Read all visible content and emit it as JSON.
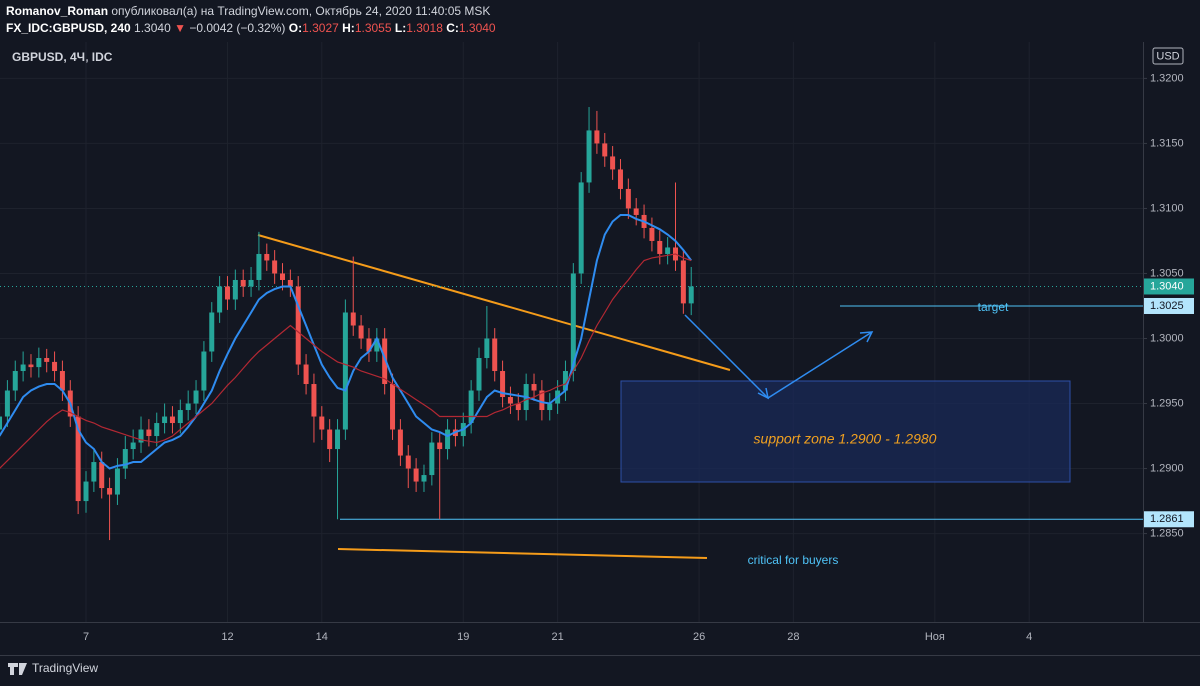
{
  "header": {
    "author": "Romanov_Roman",
    "published": "опубликовал(а) на TradingView.com, Октябрь 24, 2020 11:40:05 MSK",
    "symbol": "FX_IDC:GBPUSD, 240",
    "last": "1.3040",
    "change_arrow": "▼",
    "change": "−0.0042 (−0.32%)",
    "o_label": "O:",
    "o": "1.3027",
    "h_label": "H:",
    "h": "1.3055",
    "l_label": "L:",
    "l": "1.3018",
    "c_label": "C:",
    "c": "1.3040"
  },
  "chart_data": {
    "type": "candlestick",
    "title": "GBPUSD, 4Ч, IDC",
    "currency": "USD",
    "up_color": "#26a69a",
    "down_color": "#ef5350",
    "open": [
      1.293,
      1.294,
      1.296,
      1.2975,
      1.298,
      1.2978,
      1.2985,
      1.2982,
      1.2975,
      1.296,
      1.294,
      1.2875,
      1.289,
      1.2905,
      1.2885,
      1.288,
      1.29,
      1.2915,
      1.292,
      1.293,
      1.2925,
      1.2935,
      1.294,
      1.2935,
      1.2945,
      1.295,
      1.296,
      1.299,
      1.302,
      1.304,
      1.303,
      1.3045,
      1.304,
      1.3045,
      1.3065,
      1.306,
      1.305,
      1.3045,
      1.304,
      1.298,
      1.2965,
      1.294,
      1.293,
      1.2915,
      1.293,
      1.302,
      1.301,
      1.3,
      1.299,
      1.3,
      1.2965,
      1.293,
      1.291,
      1.29,
      1.289,
      1.2895,
      1.292,
      1.2915,
      1.293,
      1.2925,
      1.2935,
      1.296,
      1.2985,
      1.3,
      1.2975,
      1.2955,
      1.295,
      1.2945,
      1.2965,
      1.296,
      1.2945,
      1.295,
      1.296,
      1.2975,
      1.305,
      1.312,
      1.316,
      1.315,
      1.314,
      1.313,
      1.3115,
      1.31,
      1.3095,
      1.3085,
      1.3075,
      1.3065,
      1.307,
      1.306,
      1.3027
    ],
    "high": [
      1.295,
      1.2968,
      1.2983,
      1.299,
      1.2988,
      1.2993,
      1.2992,
      1.299,
      1.2983,
      1.2968,
      1.2948,
      1.2898,
      1.2915,
      1.2913,
      1.2893,
      1.2908,
      1.2925,
      1.293,
      1.294,
      1.2938,
      1.2943,
      1.295,
      1.2948,
      1.2953,
      1.296,
      1.2968,
      1.2998,
      1.3028,
      1.3048,
      1.3048,
      1.3053,
      1.3053,
      1.3055,
      1.3082,
      1.3073,
      1.3068,
      1.3058,
      1.3053,
      1.3048,
      1.2988,
      1.2973,
      1.2948,
      1.2938,
      1.2938,
      1.303,
      1.3063,
      1.3018,
      1.3008,
      1.3008,
      1.3008,
      1.2973,
      1.2938,
      1.2918,
      1.2908,
      1.2903,
      1.2928,
      1.2928,
      1.2938,
      1.2938,
      1.2943,
      1.2968,
      1.2993,
      1.3025,
      1.3008,
      1.2983,
      1.2963,
      1.2958,
      1.2973,
      1.2973,
      1.2968,
      1.2958,
      1.2968,
      1.2983,
      1.3058,
      1.3128,
      1.3178,
      1.3175,
      1.3158,
      1.3148,
      1.3138,
      1.3123,
      1.3108,
      1.3103,
      1.3093,
      1.3083,
      1.3078,
      1.312,
      1.3068,
      1.3055
    ],
    "low": [
      1.2922,
      1.2932,
      1.2952,
      1.2967,
      1.297,
      1.297,
      1.2974,
      1.2967,
      1.2952,
      1.2932,
      1.2865,
      1.2866,
      1.2882,
      1.2877,
      1.2845,
      1.2872,
      1.2892,
      1.2907,
      1.2912,
      1.2917,
      1.2917,
      1.2927,
      1.2927,
      1.2927,
      1.2937,
      1.2942,
      1.2952,
      1.2982,
      1.3012,
      1.3022,
      1.3022,
      1.3032,
      1.3032,
      1.3037,
      1.3052,
      1.3042,
      1.3037,
      1.3032,
      1.2972,
      1.2957,
      1.292,
      1.2922,
      1.2905,
      1.2861,
      1.2922,
      1.3002,
      1.2992,
      1.2982,
      1.2982,
      1.2957,
      1.2922,
      1.2902,
      1.2885,
      1.2882,
      1.2882,
      1.2887,
      1.2861,
      1.2907,
      1.2917,
      1.2917,
      1.2927,
      1.2952,
      1.2977,
      1.2967,
      1.2947,
      1.2942,
      1.2937,
      1.2937,
      1.2952,
      1.2937,
      1.2937,
      1.2942,
      1.2952,
      1.2967,
      1.3042,
      1.3112,
      1.3142,
      1.3132,
      1.3122,
      1.3107,
      1.3092,
      1.3087,
      1.3077,
      1.3067,
      1.3057,
      1.3057,
      1.3052,
      1.3019,
      1.3018
    ],
    "close": [
      1.294,
      1.296,
      1.2975,
      1.298,
      1.2978,
      1.2985,
      1.2982,
      1.2975,
      1.296,
      1.294,
      1.2875,
      1.289,
      1.2905,
      1.2885,
      1.288,
      1.29,
      1.2915,
      1.292,
      1.293,
      1.2925,
      1.2935,
      1.294,
      1.2935,
      1.2945,
      1.295,
      1.296,
      1.299,
      1.302,
      1.304,
      1.303,
      1.3045,
      1.304,
      1.3045,
      1.3065,
      1.306,
      1.305,
      1.3045,
      1.304,
      1.298,
      1.2965,
      1.294,
      1.293,
      1.2915,
      1.293,
      1.302,
      1.301,
      1.3,
      1.299,
      1.3,
      1.2965,
      1.293,
      1.291,
      1.29,
      1.289,
      1.2895,
      1.292,
      1.2915,
      1.293,
      1.2925,
      1.2935,
      1.296,
      1.2985,
      1.3,
      1.2975,
      1.2955,
      1.295,
      1.2945,
      1.2965,
      1.296,
      1.2945,
      1.295,
      1.296,
      1.2975,
      1.305,
      1.312,
      1.316,
      1.315,
      1.314,
      1.313,
      1.3115,
      1.31,
      1.3095,
      1.3085,
      1.3075,
      1.3065,
      1.307,
      1.306,
      1.3027,
      1.304
    ],
    "moving_averages": [
      {
        "color": "#2f8cf0",
        "values": [
          1.2925,
          1.2935,
          1.2945,
          1.2955,
          1.296,
          1.2963,
          1.2965,
          1.2965,
          1.296,
          1.295,
          1.293,
          1.292,
          1.2915,
          1.2905,
          1.29,
          1.2902,
          1.2903,
          1.2905,
          1.2905,
          1.291,
          1.2915,
          1.292,
          1.2922,
          1.2925,
          1.2932,
          1.294,
          1.295,
          1.296,
          1.2975,
          1.2988,
          1.3,
          1.301,
          1.302,
          1.303,
          1.3035,
          1.3038,
          1.304,
          1.304,
          1.3025,
          1.301,
          1.2995,
          1.298,
          1.297,
          1.2962,
          1.296,
          1.2975,
          1.2985,
          1.299,
          1.3,
          1.2985,
          1.297,
          1.296,
          1.295,
          1.294,
          1.2935,
          1.293,
          1.2928,
          1.2925,
          1.2928,
          1.293,
          1.2935,
          1.2945,
          1.2955,
          1.296,
          1.2958,
          1.2957,
          1.2956,
          1.2955,
          1.2953,
          1.2951,
          1.295,
          1.2955,
          1.296,
          1.298,
          1.3,
          1.303,
          1.306,
          1.308,
          1.309,
          1.3095,
          1.3095,
          1.3092,
          1.309,
          1.3087,
          1.3084,
          1.308,
          1.3075,
          1.3068,
          1.306
        ]
      },
      {
        "color": "#b22833",
        "values": [
          1.29,
          1.2906,
          1.2912,
          1.2918,
          1.2924,
          1.293,
          1.2936,
          1.2941,
          1.2945,
          1.2943,
          1.294,
          1.2937,
          1.2935,
          1.2932,
          1.293,
          1.2928,
          1.2926,
          1.2924,
          1.2922,
          1.2921,
          1.292,
          1.2922,
          1.2925,
          1.293,
          1.2935,
          1.294,
          1.2945,
          1.295,
          1.2957,
          1.2964,
          1.297,
          1.2977,
          1.2984,
          1.299,
          1.2995,
          1.3,
          1.3005,
          1.301,
          1.3005,
          1.3,
          1.2995,
          1.299,
          1.2986,
          1.2982,
          1.298,
          1.2978,
          1.2975,
          1.2973,
          1.2971,
          1.2969,
          1.2965,
          1.2961,
          1.2957,
          1.2953,
          1.2949,
          1.2945,
          1.294,
          1.294,
          1.294,
          1.294,
          1.294,
          1.294,
          1.294,
          1.2943,
          1.2945,
          1.2948,
          1.295,
          1.2953,
          1.2955,
          1.2958,
          1.296,
          1.2963,
          1.2965,
          1.2975,
          1.2985,
          1.2998,
          1.301,
          1.302,
          1.303,
          1.3038,
          1.3045,
          1.3053,
          1.306,
          1.3062,
          1.3063,
          1.3064,
          1.3065,
          1.3062,
          1.306
        ]
      }
    ],
    "ylim": [
      1.2782,
      1.3228
    ],
    "yticks": [
      {
        "value": 1.285,
        "label": "1.2850"
      },
      {
        "value": 1.29,
        "label": "1.2900"
      },
      {
        "value": 1.295,
        "label": "1.2950"
      },
      {
        "value": 1.3,
        "label": "1.3000"
      },
      {
        "value": 1.305,
        "label": "1.3050"
      },
      {
        "value": 1.31,
        "label": "1.3100"
      },
      {
        "value": 1.315,
        "label": "1.3150"
      },
      {
        "value": 1.32,
        "label": "1.3200"
      }
    ],
    "xticks": [
      {
        "value": 11,
        "label": "7"
      },
      {
        "value": 29,
        "label": "12"
      },
      {
        "value": 41,
        "label": "14"
      },
      {
        "value": 59,
        "label": "19"
      },
      {
        "value": 71,
        "label": "21"
      },
      {
        "value": 89,
        "label": "26"
      },
      {
        "value": 101,
        "label": "28"
      },
      {
        "value": 119,
        "label": "Ноя"
      },
      {
        "value": 131,
        "label": "4"
      }
    ],
    "price_labels": [
      {
        "value": 1.304,
        "label": "1.3040"
      },
      {
        "value": 1.3025,
        "label": "1.3025"
      },
      {
        "value": 1.2861,
        "label": "1.2861"
      }
    ],
    "annotations": {
      "target": "target",
      "support": "support zone 1.2900 - 1.2980",
      "critical": "critical for buyers"
    },
    "logo": "TradingView"
  }
}
